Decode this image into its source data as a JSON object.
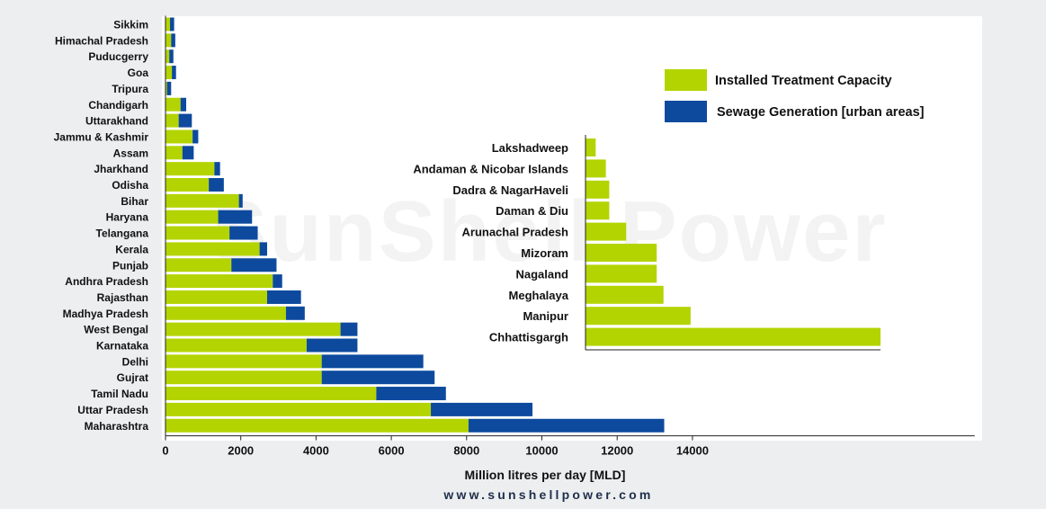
{
  "colors": {
    "installed": "#b3d400",
    "sewage": "#0d4a9e",
    "axis": "#222222"
  },
  "watermark": "SunShell Power",
  "website": "www.sunshellpower.com",
  "chart_data": [
    {
      "type": "bar",
      "orientation": "horizontal",
      "stacked": true,
      "categories": [
        "Sikkim",
        "Himachal Pradesh",
        "Puducgerry",
        "Goa",
        "Tripura",
        "Chandigarh",
        "Uttarakhand",
        "Jammu & Kashmir",
        "Assam",
        "Jharkhand",
        "Odisha",
        "Bihar",
        "Haryana",
        "Telangana",
        "Kerala",
        "Punjab",
        "Andhra Pradesh",
        "Rajasthan",
        "Madhya Pradesh",
        "West Bengal",
        "Karnataka",
        "Delhi",
        "Gujrat",
        "Tamil Nadu",
        "Uttar Pradesh",
        "Maharashtra"
      ],
      "series": [
        {
          "name": "Installed Treatment Capacity",
          "values": [
            120,
            150,
            100,
            170,
            40,
            400,
            350,
            720,
            450,
            1300,
            1150,
            1950,
            1400,
            1700,
            2500,
            1750,
            2850,
            2700,
            3200,
            4650,
            3750,
            4150,
            4150,
            5600,
            7050,
            8050
          ]
        },
        {
          "name": "Sewage Generation [urban areas]",
          "values": [
            110,
            110,
            110,
            110,
            110,
            150,
            350,
            150,
            300,
            150,
            400,
            100,
            900,
            750,
            200,
            1200,
            250,
            900,
            500,
            450,
            1350,
            2700,
            3000,
            1850,
            2700,
            5200
          ]
        }
      ],
      "xlabel": "Million litres per day [MLD]",
      "xticks": [
        0,
        2000,
        4000,
        6000,
        8000,
        10000,
        12000,
        14000
      ],
      "xlim": [
        0,
        21500
      ],
      "legend": "top-right"
    },
    {
      "type": "bar",
      "orientation": "horizontal",
      "categories": [
        "Lakshadweep",
        "Andaman & Nicobar Islands",
        "Dadra & NagarHaveli",
        "Daman & Diu",
        "Arunachal Pradesh",
        "Mizoram",
        "Nagaland",
        "Meghalaya",
        "Manipur",
        "Chhattisgargh"
      ],
      "series": [
        {
          "name": "Installed Treatment Capacity",
          "values": [
            3,
            6,
            7,
            7,
            12,
            21,
            21,
            23,
            31,
            87
          ]
        }
      ]
    }
  ]
}
